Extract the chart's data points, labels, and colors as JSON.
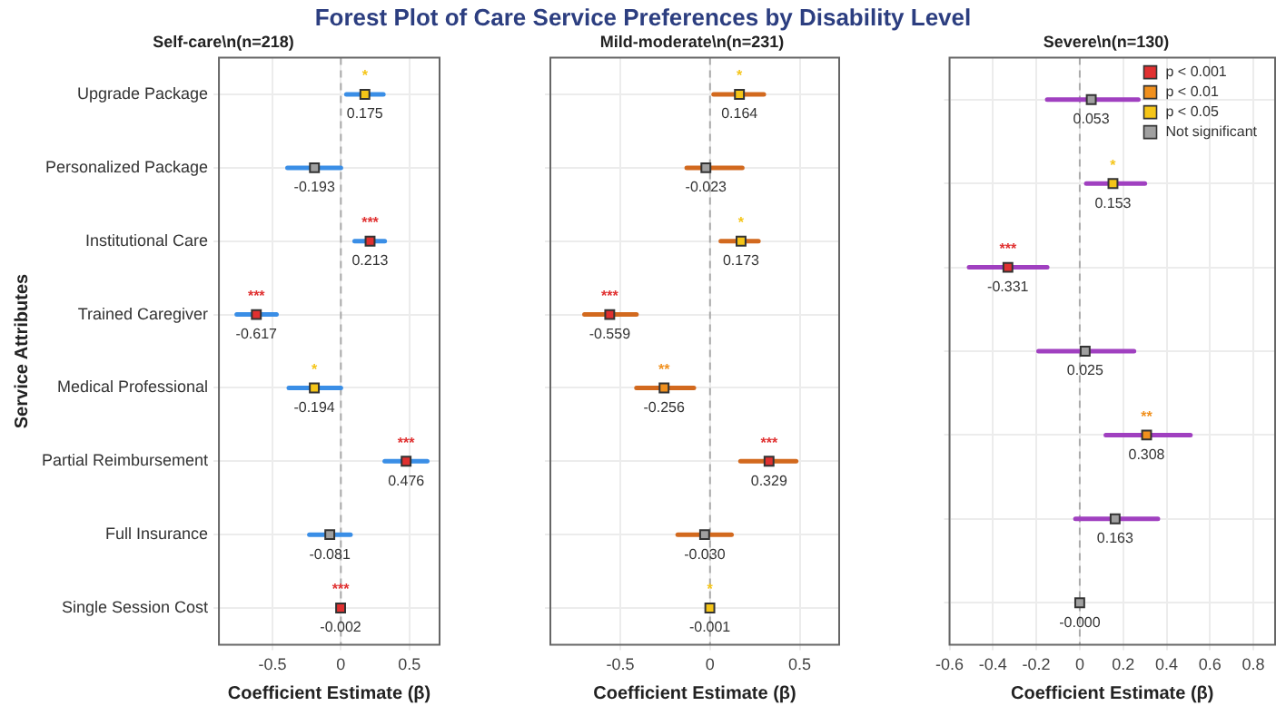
{
  "chart_data": [
    {
      "type": "scatter",
      "orientation": "horizontal",
      "title": "Forest Plot of Care Service Preferences by Disability Level",
      "subtitle": "Self-care\\n(n=218)",
      "xlabel": "Coefficient Estimate (β)",
      "ylabel": "Service Attributes",
      "grid": true,
      "marker": "square",
      "categories": [
        "Upgrade Package",
        "Personalized Package",
        "Institutional Care",
        "Trained Caregiver",
        "Medical Professional",
        "Partial Reimbursement",
        "Full Insurance",
        "Single Session Cost"
      ],
      "xlim": [
        -0.89,
        0.72
      ],
      "xticks": [
        -0.5,
        0,
        0.5
      ],
      "ref_lines": [
        {
          "axis": "x",
          "value": 0,
          "line_style": "dashed",
          "color": "#aaaaaa"
        }
      ],
      "series": [
        {
          "color": "#3a8ee6",
          "colors": [
            "#f5c518",
            "#a0a0a0",
            "#e03030",
            "#e03030",
            "#f5c518",
            "#e03030",
            "#a0a0a0",
            "#e03030"
          ],
          "values": [
            0.175,
            -0.193,
            0.213,
            -0.617,
            -0.194,
            0.476,
            -0.081,
            -0.002
          ],
          "errors": [
            [
              0.04,
              0.31
            ],
            [
              -0.39,
              0.0
            ],
            [
              0.1,
              0.32
            ],
            [
              -0.76,
              -0.47
            ],
            [
              -0.38,
              0.0
            ],
            [
              0.32,
              0.63
            ],
            [
              -0.23,
              0.07
            ],
            null
          ],
          "value_labels": [
            "0.175",
            "-0.193",
            "0.213",
            "-0.617",
            "-0.194",
            "0.476",
            "-0.081",
            "-0.002"
          ]
        }
      ],
      "annotations": [
        {
          "text": "*",
          "x": 0.175,
          "y": "Upgrade Package"
        },
        {
          "text": "***",
          "x": 0.213,
          "y": "Institutional Care"
        },
        {
          "text": "***",
          "x": -0.617,
          "y": "Trained Caregiver"
        },
        {
          "text": "*",
          "x": -0.194,
          "y": "Medical Professional"
        },
        {
          "text": "***",
          "x": 0.476,
          "y": "Partial Reimbursement"
        },
        {
          "text": "***",
          "x": -0.002,
          "y": "Single Session Cost"
        }
      ]
    },
    {
      "type": "scatter",
      "orientation": "horizontal",
      "subtitle": "Mild-moderate\\n(n=231)",
      "xlabel": "Coefficient Estimate (β)",
      "grid": true,
      "tick_labels": "x",
      "marker": "square",
      "categories": [
        "Upgrade Package",
        "Personalized Package",
        "Institutional Care",
        "Trained Caregiver",
        "Medical Professional",
        "Partial Reimbursement",
        "Full Insurance",
        "Single Session Cost"
      ],
      "xlim": [
        -0.89,
        0.72
      ],
      "xticks": [
        -0.5,
        0,
        0.5
      ],
      "ref_lines": [
        {
          "axis": "x",
          "value": 0,
          "line_style": "dashed",
          "color": "#aaaaaa"
        }
      ],
      "series": [
        {
          "color": "#d2691e",
          "colors": [
            "#f5c518",
            "#a0a0a0",
            "#f5c518",
            "#e03030",
            "#f0901e",
            "#e03030",
            "#a0a0a0",
            "#f5c518"
          ],
          "values": [
            0.164,
            -0.023,
            0.173,
            -0.559,
            -0.256,
            0.329,
            -0.03,
            -0.001
          ],
          "errors": [
            [
              0.02,
              0.3
            ],
            [
              -0.13,
              0.18
            ],
            [
              0.06,
              0.27
            ],
            [
              -0.7,
              -0.41
            ],
            [
              -0.41,
              -0.09
            ],
            [
              0.17,
              0.48
            ],
            [
              -0.18,
              0.12
            ],
            null
          ],
          "value_labels": [
            "0.164",
            "-0.023",
            "0.173",
            "-0.559",
            "-0.256",
            "0.329",
            "-0.030",
            "-0.001"
          ]
        }
      ],
      "annotations": [
        {
          "text": "*",
          "x": 0.164,
          "y": "Upgrade Package"
        },
        {
          "text": "*",
          "x": 0.173,
          "y": "Institutional Care"
        },
        {
          "text": "***",
          "x": -0.559,
          "y": "Trained Caregiver"
        },
        {
          "text": "**",
          "x": -0.256,
          "y": "Medical Professional"
        },
        {
          "text": "***",
          "x": 0.329,
          "y": "Partial Reimbursement"
        },
        {
          "text": "*",
          "x": -0.001,
          "y": "Single Session Cost"
        }
      ]
    },
    {
      "type": "scatter",
      "orientation": "horizontal",
      "subtitle": "Severe\\n(n=130)",
      "xlabel": "Coefficient Estimate (β)",
      "grid": true,
      "tick_labels": "x",
      "legend": "top right",
      "marker": "square",
      "categories": [
        null,
        null,
        null,
        null,
        null,
        null,
        null
      ],
      "xlim": [
        -0.6,
        0.9
      ],
      "xticks": [
        -0.6,
        -0.4,
        -0.2,
        0,
        0.2,
        0.4,
        0.6,
        0.8
      ],
      "ref_lines": [
        {
          "axis": "x",
          "value": 0,
          "line_style": "dashed",
          "color": "#aaaaaa"
        }
      ],
      "series": [
        {
          "color": "#a040c0",
          "colors": [
            "#a0a0a0",
            "#f5c518",
            "#e03030",
            "#a0a0a0",
            "#f0901e",
            "#a0a0a0",
            "#a0a0a0"
          ],
          "values": [
            0.053,
            0.153,
            -0.331,
            0.025,
            0.308,
            0.163,
            0
          ],
          "errors": [
            [
              -0.15,
              0.27
            ],
            [
              0.03,
              0.3
            ],
            [
              -0.51,
              -0.15
            ],
            [
              -0.19,
              0.25
            ],
            [
              0.12,
              0.51
            ],
            [
              -0.02,
              0.36
            ],
            null
          ],
          "value_labels": [
            "0.053",
            "0.153",
            "-0.331",
            "0.025",
            "0.308",
            "0.163",
            "-0.000"
          ]
        },
        {
          "name": "p < 0.001",
          "color": "#e03030",
          "values": [
            null,
            null,
            null,
            null,
            null,
            null,
            null
          ]
        },
        {
          "name": "p < 0.01",
          "color": "#f0901e",
          "values": [
            null,
            null,
            null,
            null,
            null,
            null,
            null
          ]
        },
        {
          "name": "p < 0.05",
          "color": "#f5c518",
          "values": [
            null,
            null,
            null,
            null,
            null,
            null,
            null
          ]
        },
        {
          "name": "Not significant",
          "color": "#a0a0a0",
          "values": [
            null,
            null,
            null,
            null,
            null,
            null,
            null
          ]
        }
      ],
      "annotations": [
        "*",
        "***",
        "**"
      ]
    }
  ]
}
